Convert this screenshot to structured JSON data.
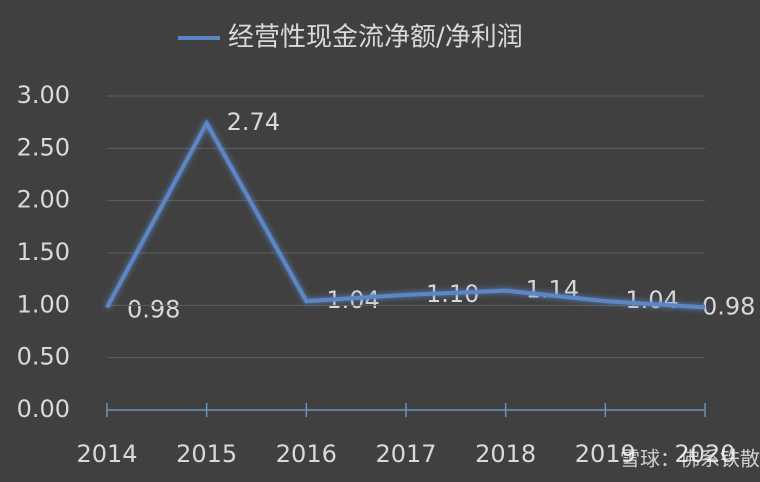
{
  "chart_data": {
    "type": "line",
    "title": "经营性现金流净额/净利润",
    "categories": [
      "2014",
      "2015",
      "2016",
      "2017",
      "2018",
      "2019",
      "2020"
    ],
    "series": [
      {
        "name": "经营性现金流净额/净利润",
        "color": "#5b86c5",
        "values": [
          0.98,
          2.74,
          1.04,
          1.1,
          1.14,
          1.04,
          0.98
        ],
        "value_labels": [
          "0.98",
          "2.74",
          "1.04",
          "1.10",
          "1.14",
          "1.04",
          "0.98"
        ]
      }
    ],
    "ylim": [
      0,
      3
    ],
    "yticks": [
      {
        "value": 0,
        "label": "0.00"
      },
      {
        "value": 0.5,
        "label": "0.50"
      },
      {
        "value": 1,
        "label": "1.00"
      },
      {
        "value": 1.5,
        "label": "1.50"
      },
      {
        "value": 2,
        "label": "2.00"
      },
      {
        "value": 2.5,
        "label": "2.50"
      },
      {
        "value": 3,
        "label": "3.00"
      }
    ],
    "grid": true,
    "watermark": "雪球：佛系铁散"
  }
}
